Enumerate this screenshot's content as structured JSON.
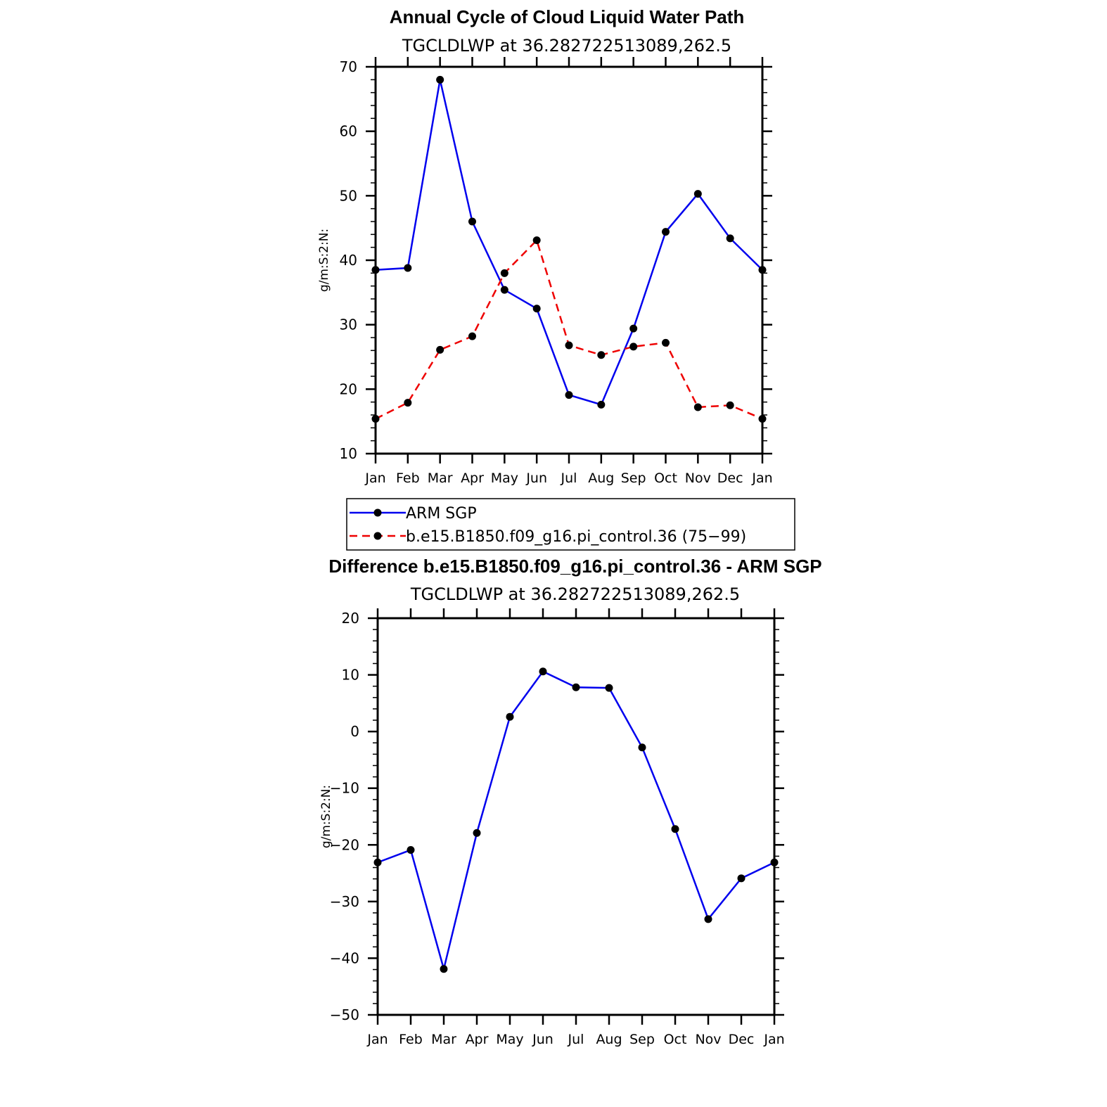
{
  "chart_data": [
    {
      "type": "line",
      "title": "Annual Cycle of Cloud Liquid Water Path",
      "subtitle": "TGCLDLWP  at  36.282722513089,262.5",
      "ylabel": "g/m:S:2:N:",
      "categories": [
        "Jan",
        "Feb",
        "Mar",
        "Apr",
        "May",
        "Jun",
        "Jul",
        "Aug",
        "Sep",
        "Oct",
        "Nov",
        "Dec",
        "Jan"
      ],
      "ylim": [
        10,
        70
      ],
      "yticks": [
        10,
        20,
        30,
        40,
        50,
        60,
        70
      ],
      "series": [
        {
          "name": "ARM SGP",
          "color": "#0000ee",
          "dash": "solid",
          "values": [
            38.5,
            38.8,
            68.0,
            46.0,
            35.4,
            32.5,
            19.1,
            17.6,
            29.4,
            44.4,
            50.3,
            43.4,
            38.5
          ]
        },
        {
          "name": "b.e15.B1850.f09_g16.pi_control.36 (75−99)",
          "color": "#ee0000",
          "dash": "dashed",
          "values": [
            15.4,
            17.9,
            26.1,
            28.2,
            38.0,
            43.1,
            26.8,
            25.3,
            26.6,
            27.2,
            17.2,
            17.5,
            15.4
          ]
        }
      ],
      "legend": [
        "ARM SGP",
        "b.e15.B1850.f09_g16.pi_control.36 (75−99)"
      ]
    },
    {
      "type": "line",
      "title": "Difference b.e15.B1850.f09_g16.pi_control.36 - ARM SGP",
      "subtitle": "TGCLDLWP  at  36.282722513089,262.5",
      "ylabel": "g/m:S:2:N:",
      "categories": [
        "Jan",
        "Feb",
        "Mar",
        "Apr",
        "May",
        "Jun",
        "Jul",
        "Aug",
        "Sep",
        "Oct",
        "Nov",
        "Dec",
        "Jan"
      ],
      "ylim": [
        -50,
        20
      ],
      "yticks": [
        -50,
        -40,
        -30,
        -20,
        -10,
        0,
        10,
        20
      ],
      "ytick_labels": [
        "−50",
        "−40",
        "−30",
        "−20",
        "−10",
        "0",
        "10",
        "20"
      ],
      "series": [
        {
          "name": "Difference",
          "color": "#0000ee",
          "dash": "solid",
          "values": [
            -23.1,
            -20.9,
            -41.9,
            -17.9,
            2.6,
            10.6,
            7.8,
            7.7,
            -2.8,
            -17.2,
            -33.1,
            -25.9,
            -23.1
          ]
        }
      ]
    }
  ]
}
